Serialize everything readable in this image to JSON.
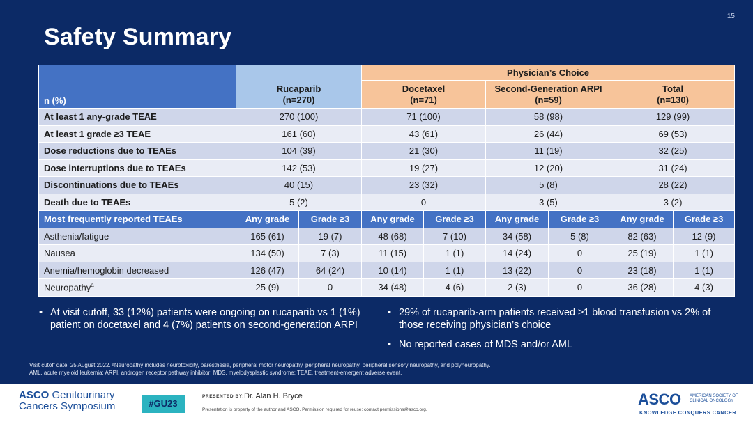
{
  "slide": {
    "page_number": "15",
    "title": "Safety Summary"
  },
  "table": {
    "corner_label": "n (%)",
    "group_label": "Physician’s Choice",
    "columns": [
      {
        "name": "Rucaparib",
        "n": "(n=270)"
      },
      {
        "name": "Docetaxel",
        "n": "(n=71)"
      },
      {
        "name": "Second-Generation ARPI",
        "n": "(n=59)"
      },
      {
        "name": "Total",
        "n": "(n=130)"
      }
    ],
    "summary_rows": [
      {
        "label": "At least 1 any-grade TEAE",
        "values": [
          "270 (100)",
          "71 (100)",
          "58 (98)",
          "129 (99)"
        ]
      },
      {
        "label": "At least 1 grade ≥3 TEAE",
        "values": [
          "161 (60)",
          "43 (61)",
          "26 (44)",
          "69 (53)"
        ]
      },
      {
        "label": "Dose reductions due to TEAEs",
        "values": [
          "104 (39)",
          "21 (30)",
          "11 (19)",
          "32 (25)"
        ]
      },
      {
        "label": "Dose interruptions due to TEAEs",
        "values": [
          "142 (53)",
          "19 (27)",
          "12 (20)",
          "31 (24)"
        ]
      },
      {
        "label": "Discontinuations due to TEAEs",
        "values": [
          "40 (15)",
          "23 (32)",
          "5 (8)",
          "28 (22)"
        ]
      },
      {
        "label": "Death due to TEAEs",
        "values": [
          "5 (2)",
          "0",
          "3 (5)",
          "3 (2)"
        ]
      }
    ],
    "teae_header": {
      "label": "Most frequently reported TEAEs",
      "any_grade": "Any grade",
      "grade3": "Grade ≥3"
    },
    "teae_rows": [
      {
        "label": "Asthenia/fatigue",
        "sup": "",
        "values": [
          "165 (61)",
          "19 (7)",
          "48 (68)",
          "7 (10)",
          "34 (58)",
          "5 (8)",
          "82 (63)",
          "12 (9)"
        ]
      },
      {
        "label": "Nausea",
        "sup": "",
        "values": [
          "134 (50)",
          "7 (3)",
          "11 (15)",
          "1 (1)",
          "14 (24)",
          "0",
          "25 (19)",
          "1 (1)"
        ]
      },
      {
        "label": "Anemia/hemoglobin decreased",
        "sup": "",
        "values": [
          "126 (47)",
          "64 (24)",
          "10 (14)",
          "1 (1)",
          "13 (22)",
          "0",
          "23 (18)",
          "1 (1)"
        ]
      },
      {
        "label": "Neuropathy",
        "sup": "a",
        "values": [
          "25 (9)",
          "0",
          "34 (48)",
          "4 (6)",
          "2 (3)",
          "0",
          "36 (28)",
          "4 (3)"
        ]
      }
    ]
  },
  "bullets_left": [
    "At visit cutoff, 33 (12%) patients were ongoing on rucaparib vs 1 (1%) patient on docetaxel and 4 (7%) patients on second-generation ARPI"
  ],
  "bullets_right": [
    "29% of rucaparib-arm patients received ≥1 blood transfusion vs 2% of those receiving physician’s choice",
    "No reported cases of MDS and/or AML"
  ],
  "footnote": {
    "line1": "Visit cutoff date: 25 August 2022. ᵃNeuropathy includes neurotoxicity, paresthesia, peripheral motor neuropathy, peripheral neuropathy, peripheral sensory neuropathy, and polyneuropathy.",
    "line2": "AML, acute myeloid leukemia; ARPI, androgen receptor pathway inhibitor; MDS, myelodysplastic syndrome; TEAE, treatment-emergent adverse event."
  },
  "footer": {
    "symposium_line1_a": "ASCO",
    "symposium_line1_b": " Genitourinary",
    "symposium_line2": "Cancers Symposium",
    "hashtag": "#GU23",
    "presented_by": "PRESENTED BY:",
    "presenter": "Dr. Alan H. Bryce",
    "disclaimer": "Presentation is property of the author and ASCO. Permission required for reuse; contact permissions@asco.org.",
    "asco_word": "ASCO",
    "asco_small": "AMERICAN SOCIETY OF CLINICAL ONCOLOGY",
    "asco_tagline": "KNOWLEDGE CONQUERS CANCER"
  }
}
